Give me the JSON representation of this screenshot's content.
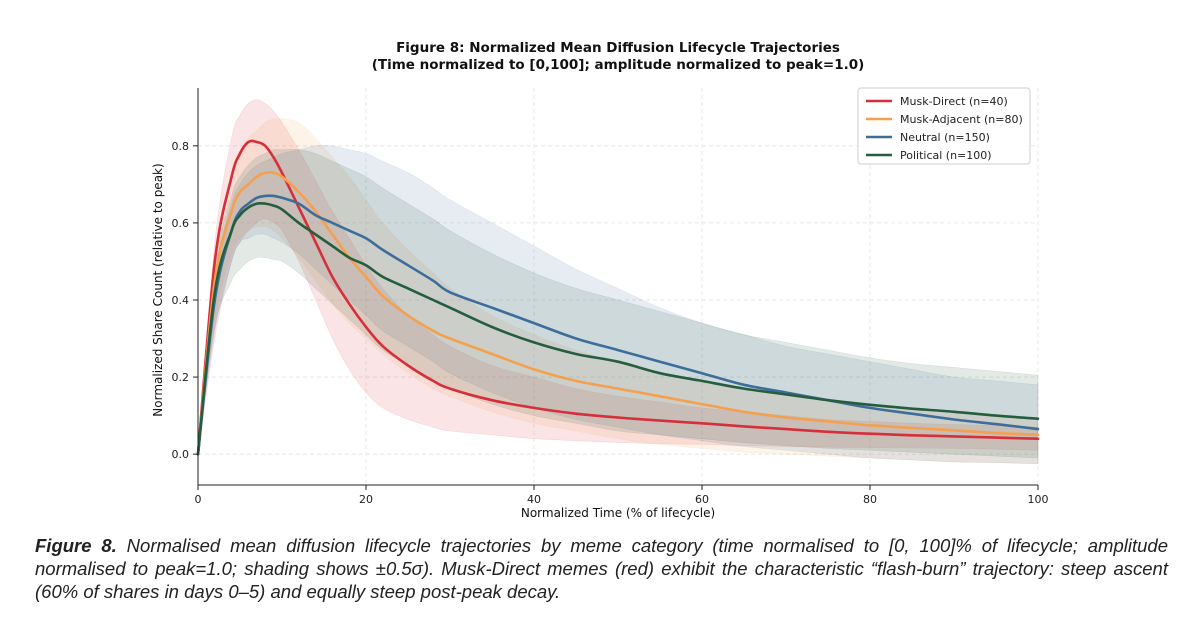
{
  "chart_data": {
    "type": "line",
    "title": "Figure 8: Normalized Mean Diffusion Lifecycle Trajectories",
    "subtitle": "(Time normalized to [0,100]; amplitude normalized to peak=1.0)",
    "xlabel": "Normalized Time (% of lifecycle)",
    "ylabel": "Normalized Share Count (relative to peak)",
    "xlim": [
      0,
      100
    ],
    "ylim": [
      -0.08,
      0.95
    ],
    "xticks": [
      0,
      20,
      40,
      60,
      80,
      100
    ],
    "yticks": [
      0.0,
      0.2,
      0.4,
      0.6,
      0.8
    ],
    "grid": true,
    "legend": "top-right",
    "x": [
      0,
      2,
      4,
      5,
      6,
      7,
      8,
      9,
      10,
      12,
      14,
      16,
      18,
      20,
      22,
      25,
      28,
      30,
      35,
      40,
      45,
      50,
      55,
      60,
      65,
      70,
      75,
      80,
      85,
      90,
      95,
      100
    ],
    "series": [
      {
        "name": "Musk-Direct (n=40)",
        "color": "#d62f3a",
        "values": [
          0.0,
          0.5,
          0.72,
          0.78,
          0.81,
          0.81,
          0.8,
          0.77,
          0.73,
          0.64,
          0.55,
          0.46,
          0.39,
          0.33,
          0.28,
          0.23,
          0.19,
          0.17,
          0.14,
          0.12,
          0.105,
          0.095,
          0.087,
          0.08,
          0.072,
          0.065,
          0.058,
          0.053,
          0.049,
          0.046,
          0.043,
          0.04
        ],
        "band": [
          0.0,
          0.55,
          0.82,
          0.88,
          0.91,
          0.92,
          0.91,
          0.89,
          0.86,
          0.79,
          0.71,
          0.63,
          0.56,
          0.49,
          0.43,
          0.36,
          0.31,
          0.28,
          0.23,
          0.2,
          0.17,
          0.15,
          0.135,
          0.12,
          0.11,
          0.1,
          0.09,
          0.085,
          0.08,
          0.077,
          0.074,
          0.07
        ],
        "band_low": [
          0.0,
          0.3,
          0.5,
          0.55,
          0.58,
          0.6,
          0.61,
          0.6,
          0.58,
          0.5,
          0.4,
          0.3,
          0.22,
          0.16,
          0.12,
          0.09,
          0.07,
          0.06,
          0.05,
          0.04,
          0.035,
          0.03,
          0.027,
          0.025,
          0.022,
          0.02,
          0.018,
          0.017,
          0.016,
          0.015,
          0.013,
          0.01
        ]
      },
      {
        "name": "Musk-Adjacent (n=80)",
        "color": "#f4a04e",
        "values": [
          0.0,
          0.45,
          0.63,
          0.68,
          0.7,
          0.72,
          0.73,
          0.73,
          0.72,
          0.68,
          0.63,
          0.57,
          0.51,
          0.46,
          0.41,
          0.36,
          0.32,
          0.3,
          0.26,
          0.22,
          0.19,
          0.17,
          0.15,
          0.13,
          0.11,
          0.095,
          0.085,
          0.075,
          0.068,
          0.062,
          0.055,
          0.05
        ],
        "band": [
          0.0,
          0.52,
          0.72,
          0.78,
          0.82,
          0.84,
          0.86,
          0.87,
          0.87,
          0.86,
          0.82,
          0.77,
          0.72,
          0.66,
          0.6,
          0.53,
          0.47,
          0.43,
          0.36,
          0.31,
          0.27,
          0.24,
          0.21,
          0.19,
          0.17,
          0.155,
          0.14,
          0.13,
          0.12,
          0.11,
          0.1,
          0.09
        ],
        "band_low": [
          0.0,
          0.35,
          0.52,
          0.56,
          0.58,
          0.59,
          0.59,
          0.58,
          0.56,
          0.51,
          0.45,
          0.39,
          0.34,
          0.3,
          0.26,
          0.21,
          0.17,
          0.15,
          0.11,
          0.08,
          0.06,
          0.04,
          0.025,
          0.015,
          0.005,
          0.0,
          -0.005,
          -0.01,
          -0.015,
          -0.02,
          -0.022,
          -0.025
        ]
      },
      {
        "name": "Neutral (n=150)",
        "color": "#3d6e9b",
        "values": [
          0.0,
          0.4,
          0.58,
          0.63,
          0.65,
          0.665,
          0.67,
          0.67,
          0.665,
          0.65,
          0.62,
          0.6,
          0.58,
          0.56,
          0.53,
          0.49,
          0.45,
          0.42,
          0.38,
          0.34,
          0.3,
          0.27,
          0.24,
          0.21,
          0.18,
          0.16,
          0.14,
          0.12,
          0.105,
          0.09,
          0.078,
          0.065
        ],
        "band": [
          0.0,
          0.46,
          0.65,
          0.7,
          0.73,
          0.75,
          0.76,
          0.77,
          0.78,
          0.79,
          0.8,
          0.8,
          0.79,
          0.78,
          0.76,
          0.73,
          0.69,
          0.66,
          0.6,
          0.54,
          0.48,
          0.43,
          0.38,
          0.34,
          0.31,
          0.28,
          0.26,
          0.24,
          0.22,
          0.2,
          0.19,
          0.18
        ],
        "band_low": [
          0.0,
          0.32,
          0.5,
          0.55,
          0.56,
          0.57,
          0.57,
          0.56,
          0.55,
          0.52,
          0.48,
          0.44,
          0.4,
          0.36,
          0.32,
          0.28,
          0.24,
          0.21,
          0.16,
          0.12,
          0.09,
          0.07,
          0.05,
          0.035,
          0.02,
          0.01,
          0.0,
          -0.01,
          -0.015,
          -0.02,
          -0.022,
          -0.025
        ]
      },
      {
        "name": "Political (n=100)",
        "color": "#255e3f",
        "values": [
          0.0,
          0.42,
          0.58,
          0.62,
          0.64,
          0.65,
          0.65,
          0.645,
          0.635,
          0.6,
          0.57,
          0.54,
          0.51,
          0.49,
          0.46,
          0.43,
          0.4,
          0.38,
          0.33,
          0.29,
          0.26,
          0.24,
          0.21,
          0.19,
          0.17,
          0.155,
          0.14,
          0.128,
          0.118,
          0.11,
          0.1,
          0.092
        ],
        "band": [
          0.0,
          0.48,
          0.67,
          0.72,
          0.75,
          0.77,
          0.78,
          0.79,
          0.79,
          0.79,
          0.78,
          0.76,
          0.74,
          0.72,
          0.69,
          0.65,
          0.61,
          0.58,
          0.52,
          0.47,
          0.43,
          0.4,
          0.37,
          0.34,
          0.31,
          0.29,
          0.27,
          0.25,
          0.235,
          0.225,
          0.215,
          0.205
        ],
        "band_low": [
          0.0,
          0.33,
          0.45,
          0.48,
          0.5,
          0.51,
          0.51,
          0.505,
          0.5,
          0.47,
          0.43,
          0.39,
          0.35,
          0.31,
          0.27,
          0.23,
          0.19,
          0.17,
          0.13,
          0.1,
          0.08,
          0.06,
          0.05,
          0.04,
          0.03,
          0.022,
          0.015,
          0.01,
          0.005,
          0.0,
          -0.005,
          -0.01
        ]
      }
    ]
  },
  "caption": {
    "lead": "Figure 8.",
    "text": " Normalised mean diffusion lifecycle trajectories by meme category (time normalised to [0, 100]% of lifecycle; amplitude normalised to peak=1.0; shading shows ±0.5σ). Musk-Direct memes (red) exhibit the characteristic “flash-burn” trajectory: steep ascent (60% of shares in days 0–5) and equally steep post-peak decay."
  }
}
